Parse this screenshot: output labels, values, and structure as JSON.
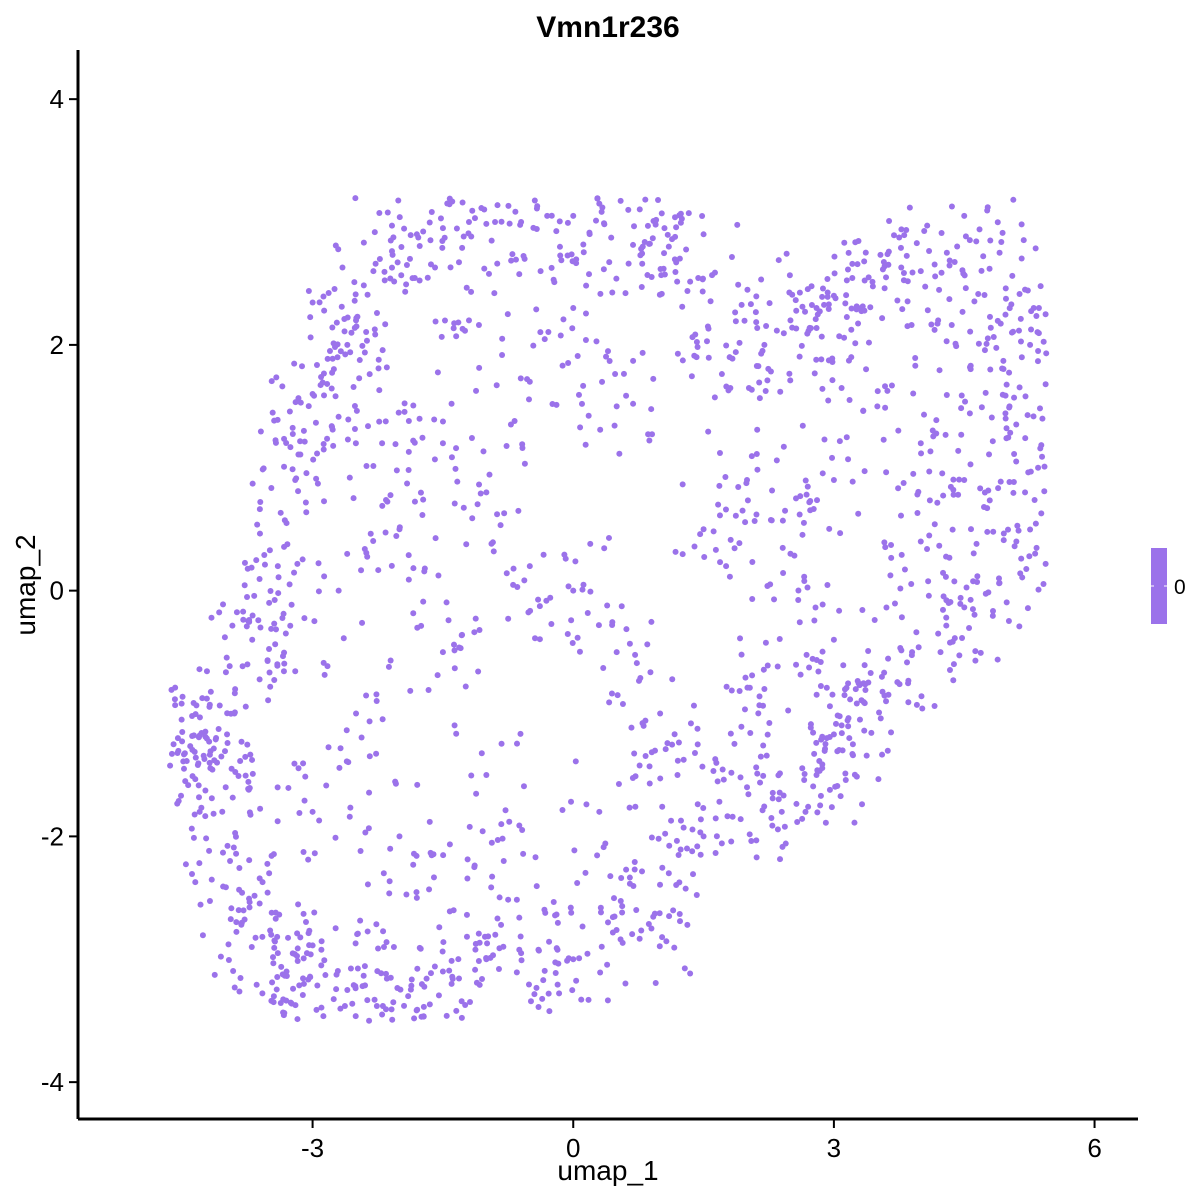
{
  "chart_data": {
    "type": "scatter",
    "title": "Vmn1r236",
    "xlabel": "umap_1",
    "ylabel": "umap_2",
    "xlim": [
      -5.7,
      6.5
    ],
    "ylim": [
      -4.3,
      4.4
    ],
    "x_ticks": [
      -3,
      0,
      3,
      6
    ],
    "y_ticks": [
      -4,
      -2,
      0,
      2,
      4
    ],
    "x_tick_labels": [
      "-3",
      "0",
      "3",
      "6"
    ],
    "y_tick_labels": [
      "-4",
      "-2",
      "0",
      "2",
      "4"
    ],
    "grid": false,
    "legend_position": "right",
    "legend": {
      "type": "colorbar",
      "labels": [
        "0"
      ],
      "colors": [
        "#9b72ea"
      ]
    },
    "point_color": "#9b72ea",
    "point_count_estimate": 2000,
    "series": [
      {
        "values": [
          [
            -4.6,
            -1.25
          ],
          [
            -4.55,
            -1.2
          ],
          [
            -4.5,
            -1.15
          ],
          [
            -4.48,
            -1.45
          ],
          [
            -4.3,
            -1.8
          ],
          [
            -4.1,
            -1.4
          ],
          [
            -4.0,
            -1.6
          ],
          [
            -3.95,
            -2.2
          ],
          [
            -3.85,
            -2.6
          ],
          [
            -3.7,
            -2.9
          ],
          [
            -3.5,
            -2.3
          ],
          [
            -3.4,
            -2.95
          ],
          [
            -3.3,
            -3.1
          ],
          [
            -3.1,
            -3.2
          ],
          [
            -2.9,
            -3.05
          ],
          [
            -2.6,
            -3.25
          ],
          [
            -2.35,
            -3.5
          ],
          [
            -2.2,
            -3.45
          ],
          [
            -2.1,
            -3.15
          ],
          [
            -1.9,
            -3.3
          ],
          [
            -1.5,
            -3.1
          ],
          [
            -1.4,
            -3.2
          ],
          [
            -1.0,
            -3.0
          ],
          [
            -0.6,
            -2.95
          ],
          [
            0.0,
            -3.0
          ],
          [
            0.4,
            -2.7
          ],
          [
            0.9,
            -2.75
          ],
          [
            1.1,
            -2.3
          ],
          [
            1.5,
            -2.0
          ],
          [
            2.0,
            -1.6
          ],
          [
            2.4,
            -1.8
          ],
          [
            2.8,
            -1.5
          ],
          [
            3.1,
            -1.3
          ],
          [
            3.3,
            -1.05
          ],
          [
            3.6,
            -0.9
          ],
          [
            3.9,
            -0.5
          ],
          [
            4.2,
            -0.35
          ],
          [
            4.6,
            -0.15
          ],
          [
            4.9,
            0.1
          ],
          [
            5.1,
            0.4
          ],
          [
            5.2,
            0.8
          ],
          [
            5.35,
            1.0
          ],
          [
            5.4,
            1.4
          ],
          [
            5.35,
            1.95
          ],
          [
            5.3,
            2.3
          ],
          [
            5.2,
            2.45
          ],
          [
            4.8,
            2.85
          ],
          [
            4.5,
            3.05
          ],
          [
            4.3,
            2.75
          ],
          [
            4.0,
            2.6
          ],
          [
            3.6,
            2.55
          ],
          [
            3.4,
            2.55
          ],
          [
            3.0,
            2.4
          ],
          [
            2.8,
            2.3
          ],
          [
            2.5,
            2.2
          ],
          [
            2.2,
            2.0
          ],
          [
            1.8,
            1.9
          ],
          [
            1.55,
            2.15
          ],
          [
            1.5,
            2.9
          ],
          [
            1.1,
            2.8
          ],
          [
            1.05,
            2.95
          ],
          [
            0.8,
            2.8
          ],
          [
            0.3,
            3.15
          ],
          [
            0.0,
            3.05
          ],
          [
            -0.3,
            3.05
          ],
          [
            -0.6,
            3.0
          ],
          [
            -0.9,
            3.0
          ],
          [
            -1.2,
            3.0
          ],
          [
            -1.5,
            2.95
          ],
          [
            -1.8,
            2.9
          ],
          [
            -2.1,
            2.85
          ],
          [
            -2.3,
            2.6
          ],
          [
            -2.5,
            2.2
          ],
          [
            -2.6,
            2.0
          ],
          [
            -2.8,
            1.95
          ],
          [
            -3.0,
            1.6
          ],
          [
            -3.1,
            1.3
          ],
          [
            -3.2,
            0.9
          ],
          [
            -3.3,
            0.55
          ],
          [
            -3.4,
            0.2
          ],
          [
            -3.5,
            -0.1
          ],
          [
            -3.6,
            -0.3
          ],
          [
            -3.75,
            -0.6
          ],
          [
            -3.9,
            -1.0
          ],
          [
            -4.05,
            -1.35
          ],
          [
            -2.0,
            0.5
          ],
          [
            -1.5,
            1.2
          ],
          [
            -1.0,
            0.8
          ],
          [
            -0.5,
            0.2
          ],
          [
            0.0,
            0.0
          ],
          [
            0.5,
            -0.5
          ],
          [
            1.0,
            -1.0
          ],
          [
            1.5,
            0.5
          ],
          [
            2.0,
            0.9
          ],
          [
            2.5,
            0.3
          ],
          [
            3.0,
            0.9
          ],
          [
            3.5,
            1.5
          ],
          [
            4.0,
            1.2
          ],
          [
            4.5,
            0.9
          ],
          [
            -1.0,
            -1.5
          ],
          [
            -2.0,
            -2.0
          ],
          [
            -2.5,
            -1.0
          ],
          [
            -1.5,
            -0.5
          ],
          [
            0.5,
            1.5
          ],
          [
            0.0,
            2.3
          ],
          [
            -0.5,
            1.7
          ],
          [
            -1.2,
            2.2
          ],
          [
            -2.2,
            1.2
          ],
          [
            -2.7,
            0.0
          ],
          [
            -3.0,
            -1.8
          ],
          [
            -1.8,
            -2.5
          ],
          [
            -0.8,
            -2.2
          ],
          [
            0.3,
            -1.8
          ],
          [
            1.2,
            -1.5
          ],
          [
            2.2,
            -0.8
          ],
          [
            3.0,
            -0.4
          ],
          [
            4.0,
            0.4
          ],
          [
            4.8,
            1.8
          ],
          [
            4.2,
            2.2
          ],
          [
            3.2,
            1.9
          ]
        ]
      }
    ]
  }
}
